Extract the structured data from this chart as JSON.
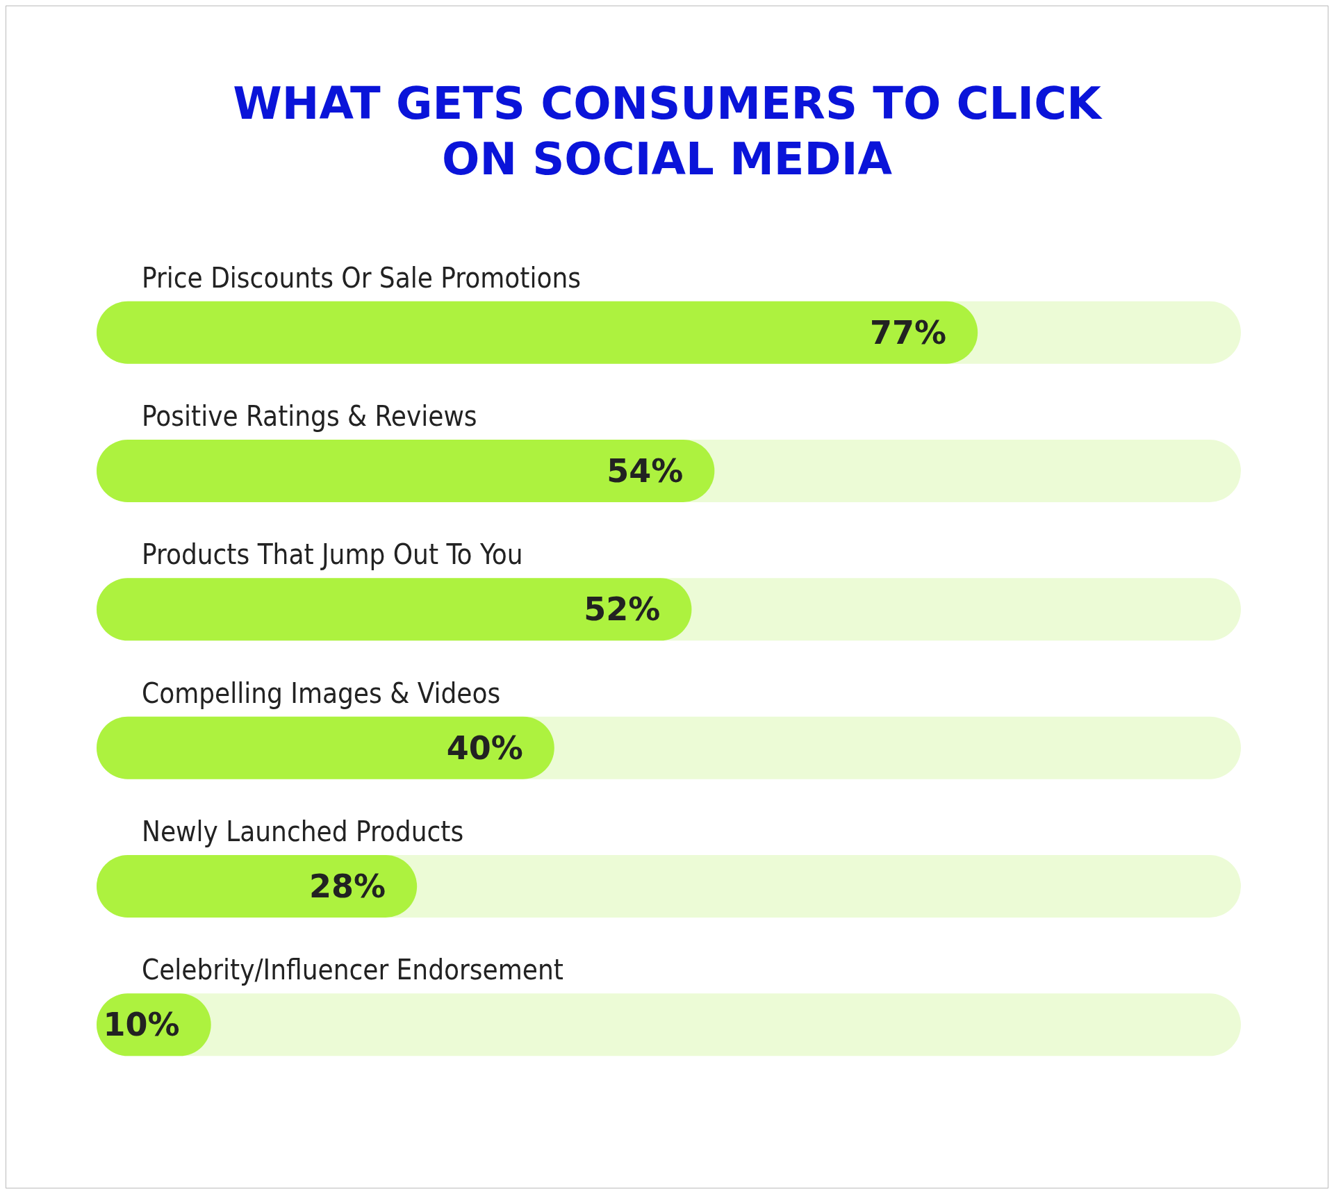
{
  "chart_data": {
    "type": "bar",
    "orientation": "horizontal",
    "title": "WHAT GETS CONSUMERS TO CLICK\nON SOCIAL MEDIA",
    "categories": [
      "Price Discounts Or Sale Promotions",
      "Positive Ratings & Reviews",
      "Products That Jump Out To You",
      "Compelling Images & Videos",
      "Newly Launched Products",
      "Celebrity/Influencer Endorsement"
    ],
    "values": [
      77,
      54,
      52,
      40,
      28,
      10
    ],
    "value_labels": [
      "77%",
      "54%",
      "52%",
      "40%",
      "28%",
      "10%"
    ],
    "color": "#adf23f",
    "xlim": [
      0,
      100
    ],
    "tick_labels": "y",
    "grid": false
  }
}
